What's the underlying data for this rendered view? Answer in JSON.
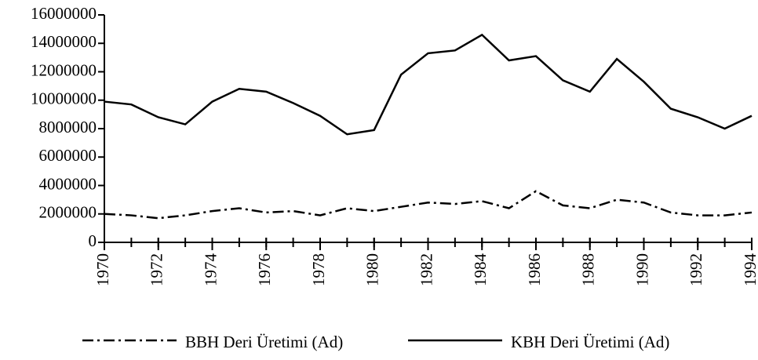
{
  "chart_data": {
    "type": "line",
    "x": [
      1970,
      1971,
      1972,
      1973,
      1974,
      1975,
      1976,
      1977,
      1978,
      1979,
      1980,
      1981,
      1982,
      1983,
      1984,
      1985,
      1986,
      1987,
      1988,
      1989,
      1990,
      1991,
      1992,
      1993,
      1994
    ],
    "series": [
      {
        "name": "BBH Deri Üretimi (Ad)",
        "color": "#000000",
        "style": "dashdot",
        "values": [
          2000000,
          1900000,
          1700000,
          1900000,
          2200000,
          2400000,
          2100000,
          2200000,
          1900000,
          2400000,
          2200000,
          2500000,
          2800000,
          2700000,
          2900000,
          2400000,
          3600000,
          2600000,
          2400000,
          3000000,
          2800000,
          2100000,
          1900000,
          1900000,
          2100000
        ]
      },
      {
        "name": "KBH Deri Üretimi (Ad)",
        "color": "#000000",
        "style": "solid",
        "values": [
          9900000,
          9700000,
          8800000,
          8300000,
          9900000,
          10800000,
          10600000,
          9800000,
          8900000,
          7600000,
          7900000,
          11800000,
          13300000,
          13500000,
          14600000,
          12800000,
          13100000,
          11400000,
          10600000,
          12900000,
          11300000,
          9400000,
          8800000,
          8000000,
          8900000
        ]
      }
    ],
    "xlim": [
      1970,
      1994
    ],
    "xticks": [
      1970,
      1972,
      1974,
      1976,
      1978,
      1980,
      1982,
      1984,
      1986,
      1988,
      1990,
      1992,
      1994
    ],
    "ylim": [
      0,
      16000000
    ],
    "yticks": [
      0,
      2000000,
      4000000,
      6000000,
      8000000,
      10000000,
      12000000,
      14000000,
      16000000
    ],
    "grid": false,
    "legend": "bottom"
  }
}
